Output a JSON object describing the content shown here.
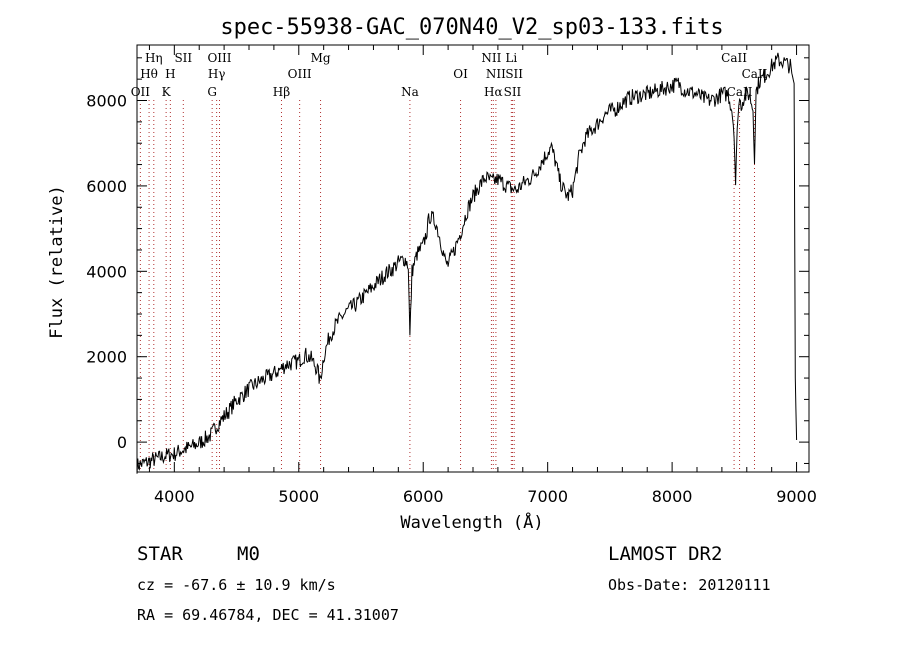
{
  "chart_data": {
    "type": "line",
    "title": "spec-55938-GAC_070N40_V2_sp03-133.fits",
    "xlabel": "Wavelength (Å)",
    "ylabel": "Flux (relative)",
    "xlim": [
      3700,
      9100
    ],
    "ylim": [
      -700,
      9300
    ],
    "xticks": [
      4000,
      5000,
      6000,
      7000,
      8000,
      9000
    ],
    "yticks": [
      0,
      2000,
      4000,
      6000,
      8000
    ],
    "grid": false,
    "series": [
      {
        "name": "flux",
        "x": [
          3700,
          3750,
          3800,
          3850,
          3900,
          3950,
          4000,
          4050,
          4100,
          4150,
          4200,
          4250,
          4300,
          4330,
          4350,
          4400,
          4450,
          4500,
          4550,
          4600,
          4650,
          4700,
          4750,
          4800,
          4850,
          4900,
          4950,
          5000,
          5050,
          5100,
          5150,
          5170,
          5200,
          5250,
          5300,
          5350,
          5400,
          5450,
          5500,
          5550,
          5600,
          5650,
          5700,
          5750,
          5800,
          5850,
          5880,
          5893,
          5910,
          5950,
          6000,
          6030,
          6050,
          6100,
          6150,
          6180,
          6200,
          6250,
          6300,
          6330,
          6350,
          6400,
          6450,
          6500,
          6550,
          6600,
          6650,
          6700,
          6750,
          6800,
          6850,
          6900,
          6950,
          7000,
          7030,
          7060,
          7100,
          7130,
          7160,
          7200,
          7250,
          7300,
          7350,
          7400,
          7450,
          7500,
          7550,
          7600,
          7650,
          7700,
          7750,
          7800,
          7850,
          7900,
          7950,
          8000,
          8050,
          8100,
          8150,
          8200,
          8250,
          8300,
          8350,
          8400,
          8450,
          8480,
          8498,
          8510,
          8530,
          8542,
          8555,
          8580,
          8620,
          8650,
          8662,
          8675,
          8700,
          8750,
          8800,
          8850,
          8900,
          8950,
          8980,
          8990,
          9000
        ],
        "y": [
          -550,
          -500,
          -450,
          -400,
          -350,
          -300,
          -280,
          -200,
          -150,
          -100,
          -20,
          80,
          180,
          350,
          420,
          600,
          780,
          980,
          1100,
          1250,
          1350,
          1450,
          1520,
          1600,
          1700,
          1820,
          1850,
          1900,
          2050,
          1950,
          1700,
          1400,
          2000,
          2500,
          2750,
          2950,
          3100,
          3200,
          3350,
          3500,
          3650,
          3800,
          3950,
          4050,
          4200,
          4300,
          4150,
          2450,
          4000,
          4400,
          4600,
          4950,
          5300,
          5150,
          4600,
          4200,
          4150,
          4500,
          4900,
          5200,
          5400,
          5750,
          6000,
          6200,
          6100,
          6150,
          6050,
          5950,
          5900,
          6050,
          6150,
          6300,
          6550,
          6800,
          6900,
          6600,
          6100,
          5900,
          5750,
          5900,
          6650,
          7100,
          7300,
          7450,
          7650,
          7750,
          7800,
          7950,
          8050,
          8100,
          8120,
          8150,
          8200,
          8250,
          8300,
          8350,
          8400,
          8250,
          8200,
          8150,
          8050,
          8000,
          8050,
          8150,
          8150,
          7800,
          7300,
          6050,
          7800,
          8000,
          7900,
          8100,
          8150,
          7800,
          6700,
          8200,
          8450,
          8600,
          8800,
          8950,
          8900,
          8800,
          8400,
          1500,
          50
        ]
      }
    ],
    "line_markers": [
      {
        "label": "OII",
        "wavelength": 3727,
        "row": 3
      },
      {
        "label": "Hθ",
        "wavelength": 3797,
        "row": 2
      },
      {
        "label": "Hη",
        "wavelength": 3835,
        "row": 1
      },
      {
        "label": "K",
        "wavelength": 3934,
        "row": 3
      },
      {
        "label": "H",
        "wavelength": 3968,
        "row": 2
      },
      {
        "label": "SII",
        "wavelength": 4072,
        "row": 1
      },
      {
        "label": "G",
        "wavelength": 4304,
        "row": 3
      },
      {
        "label": "Hγ",
        "wavelength": 4340,
        "row": 2
      },
      {
        "label": "OIII",
        "wavelength": 4363,
        "row": 1
      },
      {
        "label": "Hβ",
        "wavelength": 4861,
        "row": 3
      },
      {
        "label": "OIII",
        "wavelength": 5007,
        "row": 2
      },
      {
        "label": "Mg",
        "wavelength": 5175,
        "row": 1
      },
      {
        "label": "Na",
        "wavelength": 5893,
        "row": 3
      },
      {
        "label": "OI",
        "wavelength": 6300,
        "row": 2
      },
      {
        "label": "NII",
        "wavelength": 6548,
        "row": 1
      },
      {
        "label": "Hα",
        "wavelength": 6563,
        "row": 3
      },
      {
        "label": "NII",
        "wavelength": 6584,
        "row": 2
      },
      {
        "label": "Li",
        "wavelength": 6708,
        "row": 1
      },
      {
        "label": "SII",
        "wavelength": 6717,
        "row": 3
      },
      {
        "label": "SII",
        "wavelength": 6731,
        "row": 2
      },
      {
        "label": "CaII",
        "wavelength": 8498,
        "row": 1
      },
      {
        "label": "CaII",
        "wavelength": 8542,
        "row": 3
      },
      {
        "label": "CaII",
        "wavelength": 8662,
        "row": 2
      }
    ]
  },
  "info": {
    "object_class": "STAR",
    "subclass": "M0",
    "survey": "LAMOST DR2",
    "cz": "cz = -67.6 ± 10.9 km/s",
    "obs_date": "Obs-Date: 20120111",
    "coords": "RA =  69.46784, DEC =  41.31007"
  }
}
